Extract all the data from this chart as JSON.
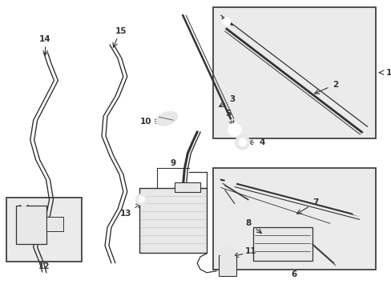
{
  "bg_color": "#ffffff",
  "line_color": "#333333",
  "fill_light": "#e8e8e8",
  "fill_box": "#ebebeb",
  "figsize": [
    4.89,
    3.6
  ],
  "dpi": 100,
  "xlim": [
    0,
    489
  ],
  "ylim": [
    0,
    360
  ]
}
